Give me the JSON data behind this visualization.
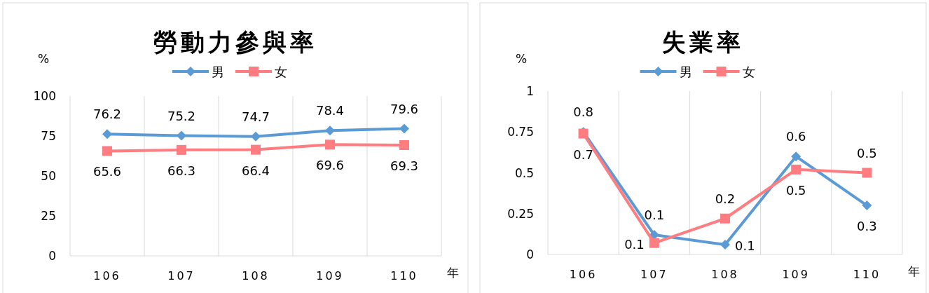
{
  "chart_data": [
    {
      "type": "line",
      "title": "勞動力參與率",
      "ylabel": "%",
      "xlabel": "年",
      "categories": [
        "106",
        "107",
        "108",
        "109",
        "110"
      ],
      "ylim": [
        0,
        100
      ],
      "yticks": [
        0,
        25,
        50,
        75,
        100
      ],
      "grid": "x",
      "legend": "top",
      "data_labels": true,
      "series": [
        {
          "name": "男",
          "color": "#5b9bd5",
          "marker": "diamond",
          "values": [
            76.2,
            75.2,
            74.7,
            78.4,
            79.6
          ]
        },
        {
          "name": "女",
          "color": "#ff7c80",
          "marker": "square",
          "values": [
            65.6,
            66.3,
            66.4,
            69.6,
            69.3
          ]
        }
      ]
    },
    {
      "type": "line",
      "title": "失業率",
      "ylabel": "%",
      "xlabel": "年",
      "categories": [
        "106",
        "107",
        "108",
        "109",
        "110"
      ],
      "ylim": [
        0,
        1
      ],
      "yticks": [
        0,
        0.25,
        0.5,
        0.75,
        1
      ],
      "grid": "x",
      "legend": "top",
      "series": [
        {
          "name": "男",
          "color": "#5b9bd5",
          "marker": "diamond",
          "values": [
            0.75,
            0.12,
            0.06,
            0.6,
            0.3
          ],
          "value_labels": [
            "0.8",
            "0.1",
            "0.1",
            "0.6",
            "0.3"
          ]
        },
        {
          "name": "女",
          "color": "#ff7c80",
          "marker": "square",
          "values": [
            0.74,
            0.07,
            0.22,
            0.52,
            0.5
          ],
          "value_labels": [
            "0.7",
            "0.1",
            "0.2",
            "0.5",
            "0.5"
          ]
        }
      ]
    }
  ]
}
